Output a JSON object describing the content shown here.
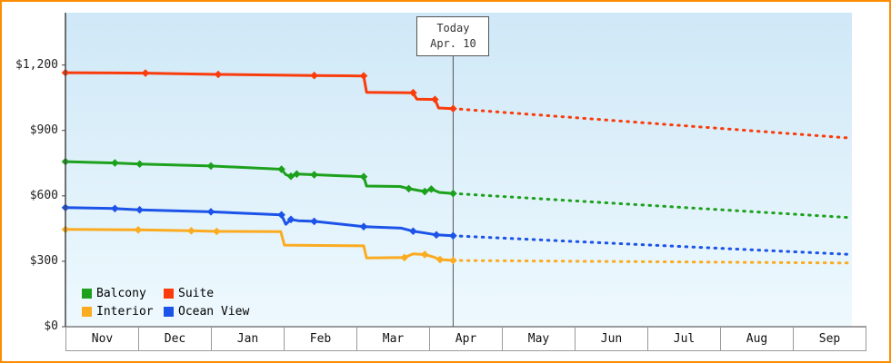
{
  "chart_data": {
    "type": "line",
    "title": "",
    "xlabel": "",
    "ylabel": "",
    "grid": false,
    "legend_position": "bottom-left",
    "background_gradient": [
      "#cfe8f7",
      "#eef9fe"
    ],
    "axis_color": "#444444",
    "x_months": [
      "Nov",
      "Dec",
      "Jan",
      "Feb",
      "Mar",
      "Apr",
      "May",
      "Jun",
      "Jul",
      "Aug",
      "Sep"
    ],
    "y_ticks": [
      {
        "value": 0,
        "label": "$0"
      },
      {
        "value": 300,
        "label": "$300"
      },
      {
        "value": 600,
        "label": "$600"
      },
      {
        "value": 900,
        "label": "$900"
      },
      {
        "value": 1200,
        "label": "$1,200"
      }
    ],
    "ylim": [
      0,
      1440
    ],
    "today": {
      "line1": "Today",
      "line2": "Apr. 10",
      "month_pos": 5.33
    },
    "series": [
      {
        "name": "Interior",
        "color": "#fbab20",
        "solid": [
          [
            0,
            446
          ],
          [
            1.0,
            444
          ],
          [
            1.73,
            440
          ],
          [
            2.08,
            437
          ],
          [
            2.96,
            436
          ],
          [
            3.01,
            374
          ],
          [
            4.1,
            371
          ],
          [
            4.14,
            315
          ],
          [
            4.66,
            317
          ],
          [
            4.78,
            334
          ],
          [
            4.94,
            331
          ],
          [
            5.05,
            321
          ],
          [
            5.15,
            308
          ],
          [
            5.33,
            304
          ]
        ],
        "markers": [
          [
            0,
            446
          ],
          [
            1.0,
            444
          ],
          [
            1.73,
            440
          ],
          [
            2.08,
            437
          ],
          [
            4.66,
            317
          ],
          [
            4.94,
            331
          ],
          [
            5.15,
            308
          ],
          [
            5.33,
            304
          ]
        ],
        "projected": [
          [
            5.33,
            304
          ],
          [
            10.75,
            292
          ]
        ]
      },
      {
        "name": "Ocean View",
        "color": "#1c53e8",
        "solid": [
          [
            0,
            546
          ],
          [
            0.68,
            542
          ],
          [
            1.02,
            536
          ],
          [
            2.0,
            527
          ],
          [
            2.97,
            513
          ],
          [
            3.03,
            470
          ],
          [
            3.1,
            492
          ],
          [
            3.2,
            486
          ],
          [
            3.42,
            483
          ],
          [
            4.1,
            459
          ],
          [
            4.62,
            452
          ],
          [
            4.78,
            438
          ],
          [
            4.94,
            430
          ],
          [
            5.1,
            421
          ],
          [
            5.33,
            417
          ]
        ],
        "markers": [
          [
            0,
            546
          ],
          [
            0.68,
            542
          ],
          [
            1.02,
            536
          ],
          [
            2.0,
            527
          ],
          [
            2.97,
            513
          ],
          [
            3.1,
            492
          ],
          [
            3.42,
            483
          ],
          [
            4.1,
            459
          ],
          [
            4.78,
            438
          ],
          [
            5.1,
            421
          ],
          [
            5.33,
            417
          ]
        ],
        "projected": [
          [
            5.33,
            417
          ],
          [
            10.75,
            332
          ]
        ]
      },
      {
        "name": "Balcony",
        "color": "#1da11d",
        "solid": [
          [
            0,
            757
          ],
          [
            0.68,
            751
          ],
          [
            1.02,
            746
          ],
          [
            2.0,
            737
          ],
          [
            2.97,
            722
          ],
          [
            3.03,
            697
          ],
          [
            3.1,
            690
          ],
          [
            3.18,
            700
          ],
          [
            3.42,
            697
          ],
          [
            4.1,
            688
          ],
          [
            4.14,
            645
          ],
          [
            4.6,
            643
          ],
          [
            4.72,
            633
          ],
          [
            4.84,
            626
          ],
          [
            4.94,
            620
          ],
          [
            5.03,
            631
          ],
          [
            5.14,
            616
          ],
          [
            5.33,
            611
          ]
        ],
        "markers": [
          [
            0,
            757
          ],
          [
            0.68,
            751
          ],
          [
            1.02,
            746
          ],
          [
            2.0,
            737
          ],
          [
            2.97,
            722
          ],
          [
            3.1,
            690
          ],
          [
            3.18,
            700
          ],
          [
            3.42,
            697
          ],
          [
            4.1,
            688
          ],
          [
            4.72,
            633
          ],
          [
            4.94,
            620
          ],
          [
            5.03,
            631
          ],
          [
            5.33,
            611
          ]
        ],
        "projected": [
          [
            5.33,
            611
          ],
          [
            10.75,
            501
          ]
        ]
      },
      {
        "name": "Suite",
        "color": "#fa3c0c",
        "solid": [
          [
            0,
            1165
          ],
          [
            1.1,
            1163
          ],
          [
            2.1,
            1157
          ],
          [
            3.42,
            1152
          ],
          [
            4.1,
            1150
          ],
          [
            4.14,
            1075
          ],
          [
            4.78,
            1073
          ],
          [
            4.83,
            1044
          ],
          [
            5.08,
            1042
          ],
          [
            5.13,
            1003
          ],
          [
            5.33,
            1000
          ]
        ],
        "markers": [
          [
            0,
            1165
          ],
          [
            1.1,
            1163
          ],
          [
            2.1,
            1157
          ],
          [
            3.42,
            1152
          ],
          [
            4.1,
            1150
          ],
          [
            4.78,
            1073
          ],
          [
            5.08,
            1042
          ],
          [
            5.33,
            1000
          ]
        ],
        "projected": [
          [
            5.33,
            1000
          ],
          [
            10.75,
            866
          ]
        ]
      }
    ],
    "legend": {
      "rows": [
        [
          "Balcony",
          "Suite"
        ],
        [
          "Interior",
          "Ocean View"
        ]
      ]
    }
  }
}
